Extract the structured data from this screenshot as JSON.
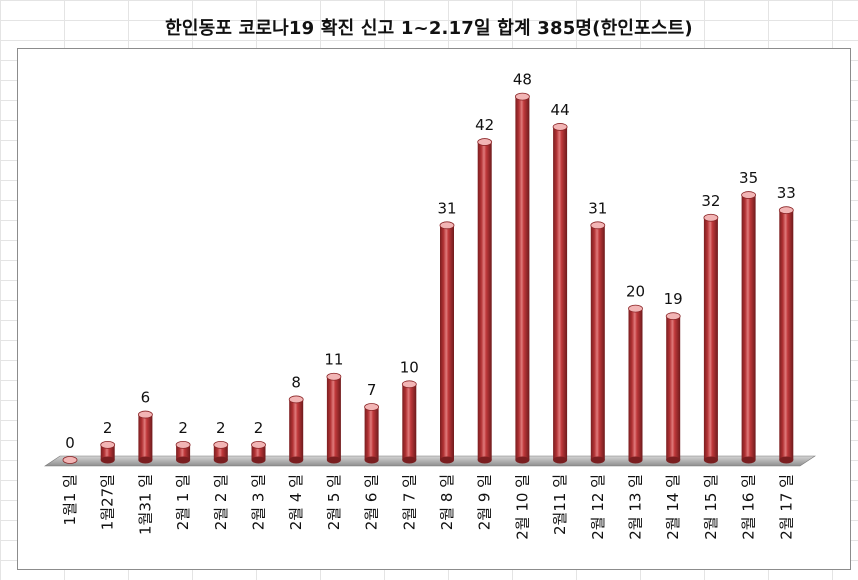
{
  "chart_data": {
    "type": "bar",
    "title": "한인동포 코로나19 확진 신고 1~2.17일 합계 385명(한인포스트)",
    "categories": [
      "1월1 일",
      "1월27일",
      "1월31 일",
      "2월 1 일",
      "2월 2 일",
      "2월 3 일",
      "2월 4 일",
      "2월 5 일",
      "2월 6 일",
      "2월 7 일",
      "2월 8 일",
      "2월 9 일",
      "2월 10 일",
      "2월11 일",
      "2월 12 일",
      "2월 13 일",
      "2월 14 일",
      "2월 15 일",
      "2월 16 일",
      "2월 17 일"
    ],
    "values": [
      0,
      2,
      6,
      2,
      2,
      2,
      8,
      11,
      7,
      10,
      31,
      42,
      48,
      44,
      31,
      20,
      19,
      32,
      35,
      33
    ],
    "ylim": [
      0,
      50
    ],
    "grid": false,
    "legend": "none",
    "bar_color": "#c0393b",
    "bar_top_color": "#f2b5b5",
    "floor_color": "#b8b8b8"
  }
}
